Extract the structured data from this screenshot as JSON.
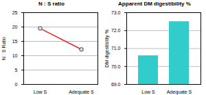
{
  "chart_data": [
    {
      "type": "line",
      "title": "N : S ratio",
      "y_label": "N : S Ratio",
      "categories": [
        "Low S",
        "Adequate S"
      ],
      "values": [
        19.5,
        12.2
      ],
      "color": "#e8231f",
      "marker": "circle",
      "ylim": [
        0,
        25
      ],
      "yticks": [
        0,
        5,
        10,
        15,
        20,
        25
      ],
      "grid": true
    },
    {
      "type": "bar",
      "title": "Apparent DM digestibility %",
      "y_label": "DM digestibility %",
      "categories": [
        "Low S",
        "Adequate S"
      ],
      "values": [
        70.6,
        72.5
      ],
      "color": "#33cccc",
      "ylim": [
        69,
        73
      ],
      "yticks": [
        {
          "value": 69,
          "label": "69.0"
        },
        {
          "value": 70,
          "label": "70.0"
        },
        {
          "value": 71,
          "label": "71.0"
        },
        {
          "value": 72,
          "label": "72.0"
        },
        {
          "value": 73,
          "label": "73.0"
        }
      ],
      "grid": true
    }
  ]
}
